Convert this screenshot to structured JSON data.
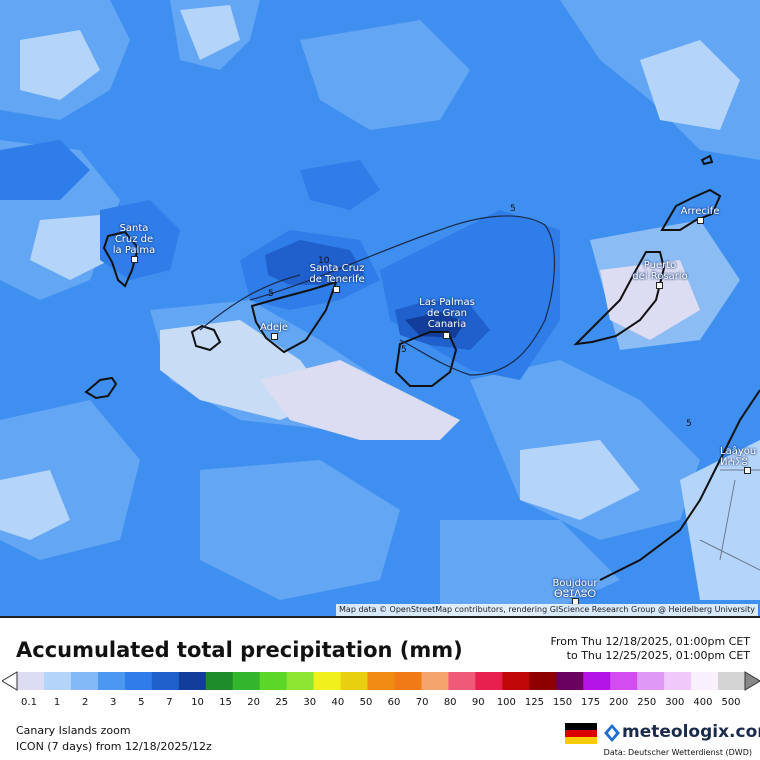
{
  "map": {
    "attribution": "Map data © OpenStreetMap contributors, rendering GIScience Research Group @ Heidelberg University",
    "cities": [
      {
        "id": "santa-cruz-de-la-palma",
        "label": "Santa\nCruz de\nla Palma"
      },
      {
        "id": "santa-cruz-de-tenerife",
        "label": "Santa Cruz\nde Tenerife"
      },
      {
        "id": "adeje",
        "label": "Adeje"
      },
      {
        "id": "las-palmas-de-gran-canaria",
        "label": "Las Palmas\nde Gran\nCanaria"
      },
      {
        "id": "puerto-del-rosario",
        "label": "Puerto\ndel Rosario"
      },
      {
        "id": "arrecife",
        "label": "Arrecife"
      },
      {
        "id": "laayoune",
        "label": "Laâyou\nⵍⵄⵢⵓ"
      },
      {
        "id": "boujdour",
        "label": "Boujdour\nⴱⵓⵊⴷⵓⵔ"
      }
    ],
    "contour_labels": [
      "5",
      "5",
      "5",
      "5",
      "10"
    ]
  },
  "legend": {
    "title": "Accumulated total precipitation (mm)",
    "period_from": "From Thu 12/18/2025, 01:00pm CET",
    "period_to": "to Thu 12/25/2025, 01:00pm CET",
    "ticks": [
      "0.1",
      "1",
      "2",
      "3",
      "5",
      "7",
      "10",
      "15",
      "20",
      "25",
      "30",
      "40",
      "50",
      "60",
      "70",
      "80",
      "90",
      "100",
      "125",
      "150",
      "175",
      "200",
      "250",
      "300",
      "400",
      "500"
    ],
    "colors": [
      "#dcdcf2",
      "#b4d4fa",
      "#82b8f6",
      "#4c98f0",
      "#2e7de8",
      "#2060cc",
      "#123d9a",
      "#1e8c2a",
      "#34b52e",
      "#5cd629",
      "#8ee632",
      "#f2f01c",
      "#e8d010",
      "#f08a10",
      "#f07a16",
      "#f4a46c",
      "#ef5a78",
      "#e82050",
      "#c00808",
      "#8e0000",
      "#6a0060",
      "#b414e8",
      "#d24cf0",
      "#e098f6",
      "#f0c8fa",
      "#f8f0fc",
      "#d4d4d4"
    ]
  },
  "footer": {
    "region": "Canary Islands zoom",
    "model": "ICON (7 days)  from  12/18/2025/12z",
    "brand": "meteologix.com",
    "source": "Data: Deutscher Wetterdienst  (DWD)",
    "flag_colors": [
      "#000000",
      "#dd0000",
      "#ffcc00"
    ]
  }
}
